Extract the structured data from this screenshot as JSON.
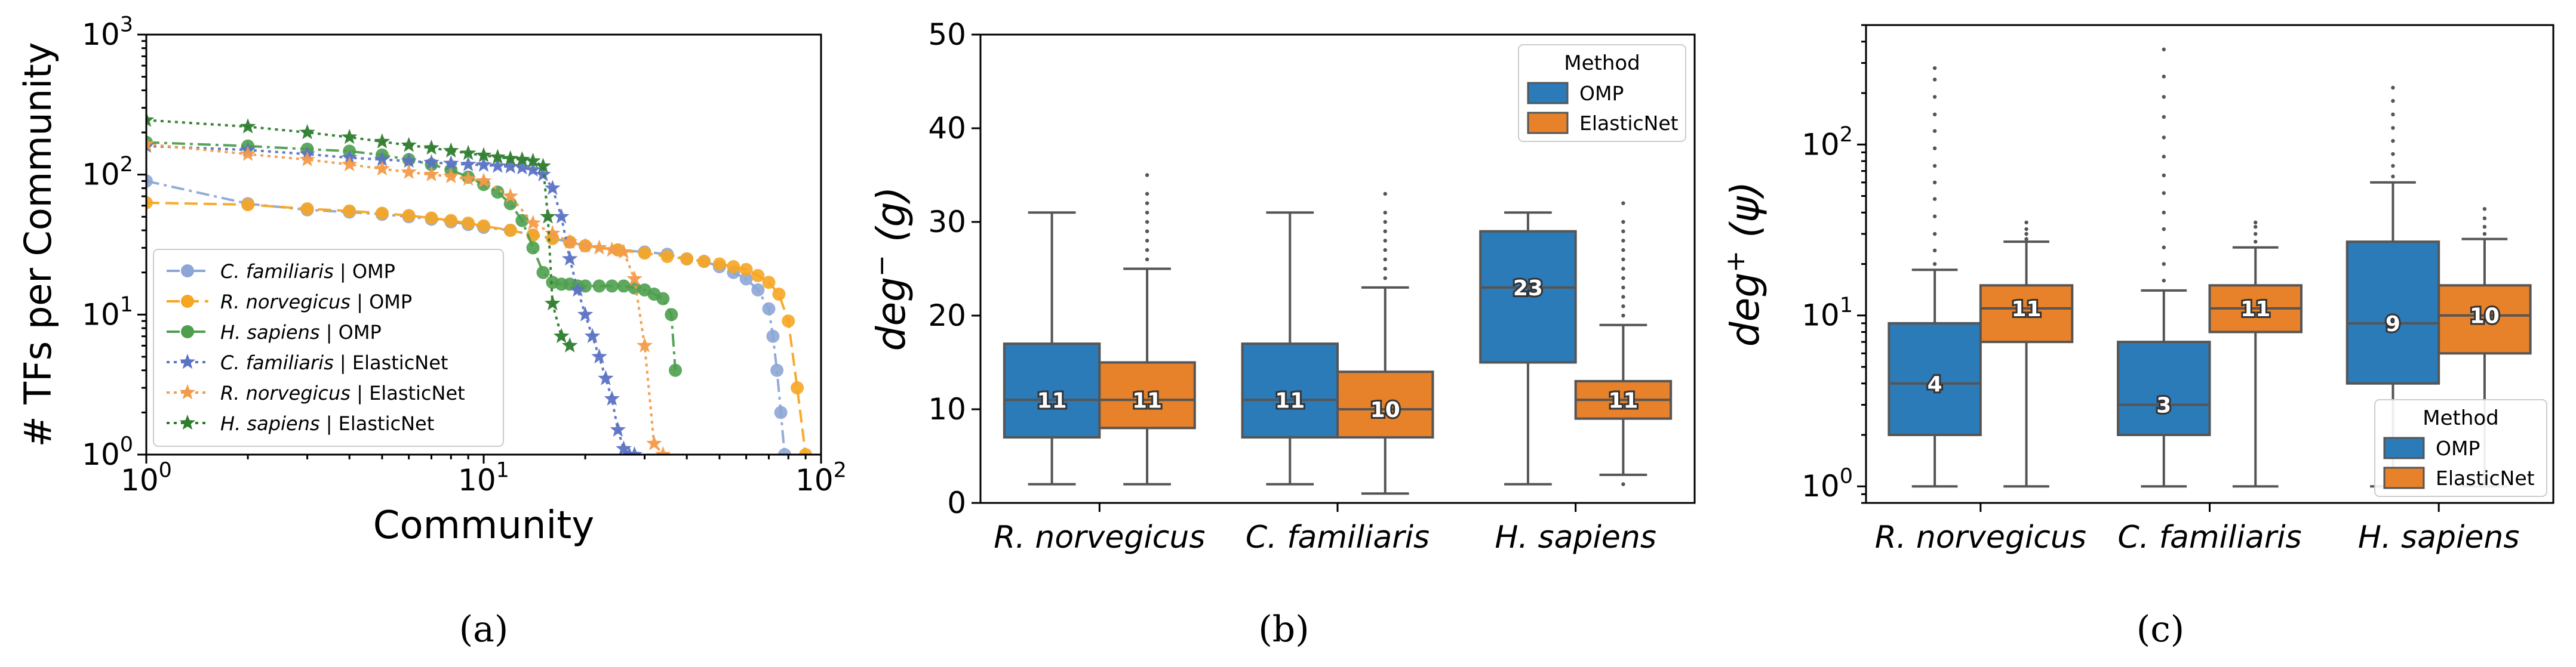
{
  "chart_data": [
    {
      "id": "a",
      "type": "line",
      "caption": "(a)",
      "xlabel": "Community",
      "ylabel": "# TFs per Community",
      "xscale": "log",
      "yscale": "log",
      "xlim": [
        1,
        100
      ],
      "ylim": [
        1,
        1000
      ],
      "xticks": [
        {
          "v": 1,
          "b": "10",
          "e": "0"
        },
        {
          "v": 10,
          "b": "10",
          "e": "1"
        },
        {
          "v": 100,
          "b": "10",
          "e": "2"
        }
      ],
      "yticks": [
        {
          "v": 1,
          "b": "10",
          "e": "0"
        },
        {
          "v": 10,
          "b": "10",
          "e": "1"
        },
        {
          "v": 100,
          "b": "10",
          "e": "2"
        },
        {
          "v": 1000,
          "b": "10",
          "e": "3"
        }
      ],
      "legend_position": "lower-left",
      "series": [
        {
          "name": "C. familiaris | OMP",
          "species": "C. familiaris",
          "method": " | OMP",
          "color": "#8da6d6",
          "marker": "circle",
          "dash": "22 8 5 8",
          "x": [
            1,
            2,
            3,
            4,
            5,
            6,
            7,
            8,
            9,
            10,
            12,
            14,
            16,
            18,
            20,
            25,
            30,
            35,
            40,
            45,
            50,
            55,
            60,
            65,
            70,
            72,
            74,
            76,
            78
          ],
          "y": [
            90,
            62,
            56,
            54,
            52,
            50,
            48,
            46,
            44,
            42,
            40,
            37,
            35,
            33,
            31,
            29,
            28,
            27,
            25,
            24,
            22,
            20,
            18,
            15,
            11,
            7,
            4,
            2,
            1
          ]
        },
        {
          "name": "R. norvegicus | OMP",
          "species": "R. norvegicus",
          "method": " | OMP",
          "color": "#f6a623",
          "marker": "circle",
          "dash": "22 10",
          "x": [
            1,
            2,
            3,
            4,
            5,
            6,
            7,
            8,
            9,
            10,
            12,
            14,
            16,
            18,
            20,
            25,
            30,
            35,
            40,
            45,
            50,
            55,
            60,
            65,
            70,
            75,
            80,
            85,
            90
          ],
          "y": [
            63,
            61,
            57,
            55,
            53,
            51,
            49,
            47,
            45,
            43,
            40,
            37,
            35,
            33,
            31,
            29,
            27.5,
            26,
            25,
            24,
            23,
            22,
            21,
            19,
            17,
            14,
            9,
            3,
            1
          ]
        },
        {
          "name": "H. sapiens | OMP",
          "species": "H. sapiens",
          "method": " | OMP",
          "color": "#4e9e4e",
          "marker": "circle",
          "dash": "22 8 5 8",
          "x": [
            1,
            2,
            3,
            4,
            5,
            6,
            7,
            8,
            9,
            10,
            11,
            12,
            13,
            14,
            15,
            16,
            17,
            18,
            19,
            20,
            22,
            24,
            26,
            28,
            30,
            32,
            34,
            36,
            37
          ],
          "y": [
            170,
            160,
            152,
            147,
            138,
            128,
            118,
            108,
            96,
            85,
            75,
            62,
            47,
            30,
            20,
            17,
            16.5,
            16.5,
            16,
            16,
            16,
            16,
            16,
            15.5,
            15,
            14,
            13,
            10,
            4
          ]
        },
        {
          "name": "C. familiaris | ElasticNet",
          "species": "C. familiaris",
          "method": " | ElasticNet",
          "color": "#5c73c4",
          "marker": "star",
          "dash": "5 7",
          "x": [
            1,
            2,
            3,
            4,
            5,
            6,
            7,
            8,
            9,
            10,
            11,
            12,
            13,
            14,
            15,
            16,
            17,
            18,
            19,
            20,
            21,
            22,
            23,
            24,
            25,
            26,
            27,
            28
          ],
          "y": [
            160,
            150,
            140,
            132,
            128,
            125,
            122,
            120,
            118,
            117,
            115,
            114,
            112,
            108,
            100,
            80,
            50,
            25,
            15,
            10,
            7,
            5,
            3.5,
            2.5,
            1.5,
            1.1,
            1,
            1
          ]
        },
        {
          "name": "R. norvegicus | ElasticNet",
          "species": "R. norvegicus",
          "method": " | ElasticNet",
          "color": "#f39b4a",
          "marker": "star",
          "dash": "5 7",
          "x": [
            1,
            2,
            3,
            4,
            5,
            6,
            7,
            8,
            9,
            10,
            12,
            14,
            16,
            18,
            20,
            22,
            24,
            26,
            28,
            30,
            32,
            34
          ],
          "y": [
            165,
            140,
            128,
            118,
            110,
            104,
            100,
            97,
            93,
            90,
            70,
            45,
            38,
            33,
            31,
            30,
            29,
            28,
            18,
            6,
            1.2,
            1
          ]
        },
        {
          "name": "H. sapiens | ElasticNet",
          "species": "H. sapiens",
          "method": " | ElasticNet",
          "color": "#2e7d2e",
          "marker": "star",
          "dash": "5 7",
          "x": [
            1,
            2,
            3,
            4,
            5,
            6,
            7,
            8,
            9,
            10,
            11,
            12,
            13,
            14,
            15,
            15.5,
            16,
            17,
            18
          ],
          "y": [
            245,
            220,
            200,
            185,
            172,
            162,
            155,
            148,
            142,
            137,
            133,
            130,
            128,
            125,
            115,
            50,
            12,
            7,
            6
          ]
        }
      ]
    },
    {
      "id": "b",
      "type": "boxplot",
      "caption": "(b)",
      "ylabel_base": "deg",
      "ylabel_sup": "−",
      "ylabel_arg": "(g)",
      "yscale": "linear",
      "ylim": [
        0,
        50
      ],
      "yticks": [
        0,
        10,
        20,
        30,
        40,
        50
      ],
      "categories": [
        "R. norvegicus",
        "C. familiaris",
        "H. sapiens"
      ],
      "legend_title": "Method",
      "legend_position": "top-right",
      "methods": [
        {
          "name": "OMP",
          "color": "#2b7bb9"
        },
        {
          "name": "ElasticNet",
          "color": "#e8822a"
        }
      ],
      "boxes": [
        {
          "category": "R. norvegicus",
          "method": "OMP",
          "whislo": 2,
          "q1": 7,
          "med": 11,
          "q3": 17,
          "whishi": 31,
          "label": "11",
          "fliers": []
        },
        {
          "category": "R. norvegicus",
          "method": "ElasticNet",
          "whislo": 2,
          "q1": 8,
          "med": 11,
          "q3": 15,
          "whishi": 25,
          "label": "11",
          "fliers": [
            26,
            27,
            28,
            29,
            30,
            31,
            32,
            33,
            35
          ]
        },
        {
          "category": "C. familiaris",
          "method": "OMP",
          "whislo": 2,
          "q1": 7,
          "med": 11,
          "q3": 17,
          "whishi": 31,
          "label": "11",
          "fliers": []
        },
        {
          "category": "C. familiaris",
          "method": "ElasticNet",
          "whislo": 1,
          "q1": 7,
          "med": 10,
          "q3": 14,
          "whishi": 23,
          "label": "10",
          "fliers": [
            24,
            25,
            26,
            27,
            28,
            29,
            30,
            31,
            33
          ]
        },
        {
          "category": "H. sapiens",
          "method": "OMP",
          "whislo": 2,
          "q1": 15,
          "med": 23,
          "q3": 29,
          "whishi": 31,
          "label": "23",
          "fliers": []
        },
        {
          "category": "H. sapiens",
          "method": "ElasticNet",
          "whislo": 3,
          "q1": 9,
          "med": 11,
          "q3": 13,
          "whishi": 19,
          "label": "11",
          "fliers": [
            2,
            20,
            21,
            22,
            23,
            24,
            25,
            26,
            27,
            28,
            29,
            30,
            32
          ]
        }
      ]
    },
    {
      "id": "c",
      "type": "boxplot",
      "caption": "(c)",
      "ylabel_base": "deg",
      "ylabel_sup": "+",
      "ylabel_arg": "(ψ)",
      "yscale": "log",
      "ylim": [
        0.8,
        500
      ],
      "yticks": [
        {
          "v": 1,
          "b": "10",
          "e": "0"
        },
        {
          "v": 10,
          "b": "10",
          "e": "1"
        },
        {
          "v": 100,
          "b": "10",
          "e": "2"
        }
      ],
      "categories": [
        "R. norvegicus",
        "C. familiaris",
        "H. sapiens"
      ],
      "legend_title": "Method",
      "legend_position": "lower-right",
      "methods": [
        {
          "name": "OMP",
          "color": "#2b7bb9"
        },
        {
          "name": "ElasticNet",
          "color": "#e8822a"
        }
      ],
      "boxes": [
        {
          "category": "R. norvegicus",
          "method": "OMP",
          "whislo": 1,
          "q1": 2,
          "med": 4,
          "q3": 9,
          "whishi": 18.5,
          "label": "4",
          "fliers": [
            20,
            24,
            30,
            38,
            48,
            60,
            75,
            95,
            120,
            150,
            190,
            240,
            280
          ]
        },
        {
          "category": "R. norvegicus",
          "method": "ElasticNet",
          "whislo": 1,
          "q1": 7,
          "med": 11,
          "q3": 15,
          "whishi": 27,
          "label": "11",
          "fliers": [
            28,
            30,
            32,
            35
          ]
        },
        {
          "category": "C. familiaris",
          "method": "OMP",
          "whislo": 1,
          "q1": 2,
          "med": 3,
          "q3": 7,
          "whishi": 14,
          "label": "3",
          "fliers": [
            16,
            20,
            25,
            32,
            40,
            52,
            66,
            85,
            110,
            145,
            190,
            250,
            360
          ]
        },
        {
          "category": "C. familiaris",
          "method": "ElasticNet",
          "whislo": 1,
          "q1": 8,
          "med": 11,
          "q3": 15,
          "whishi": 25,
          "label": "11",
          "fliers": [
            27,
            30,
            33,
            35
          ]
        },
        {
          "category": "H. sapiens",
          "method": "OMP",
          "whislo": 1,
          "q1": 4,
          "med": 9,
          "q3": 27,
          "whishi": 60,
          "label": "9",
          "fliers": [
            65,
            75,
            88,
            105,
            125,
            150,
            180,
            215
          ]
        },
        {
          "category": "H. sapiens",
          "method": "ElasticNet",
          "whislo": 1,
          "q1": 6,
          "med": 10,
          "q3": 15,
          "whishi": 28,
          "label": "10",
          "fliers": [
            30,
            33,
            37,
            42
          ]
        }
      ]
    }
  ]
}
